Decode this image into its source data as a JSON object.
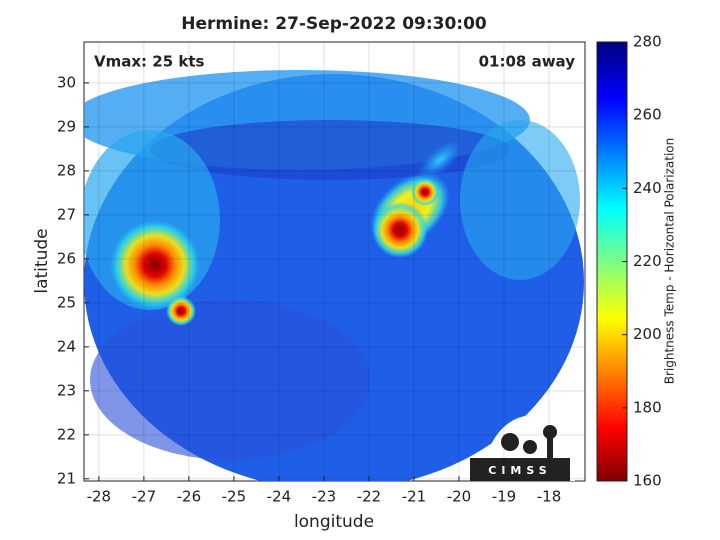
{
  "chart_data": {
    "type": "heatmap",
    "title": "Hermine: 27-Sep-2022 09:30:00",
    "annotations": [
      "Vmax: 25 kts",
      "01:08 away"
    ],
    "x_label": "longitude",
    "y_label": "latitude",
    "xlim": [
      -28.33,
      -17.2
    ],
    "xticks": [
      -28,
      -27,
      -26,
      -25,
      -24,
      -23,
      -22,
      -21,
      -20,
      -19,
      -18
    ],
    "ylim": [
      20.95,
      30.93
    ],
    "yticks": [
      21,
      22,
      23,
      24,
      25,
      26,
      27,
      28,
      29,
      30
    ],
    "grid": true,
    "colorbar": {
      "label": "Brightness Temp - Horizontal Polarization",
      "lim": [
        160,
        280
      ],
      "ticks": [
        160,
        180,
        200,
        220,
        240,
        260,
        280
      ]
    },
    "logo_text": "CIMSS"
  }
}
